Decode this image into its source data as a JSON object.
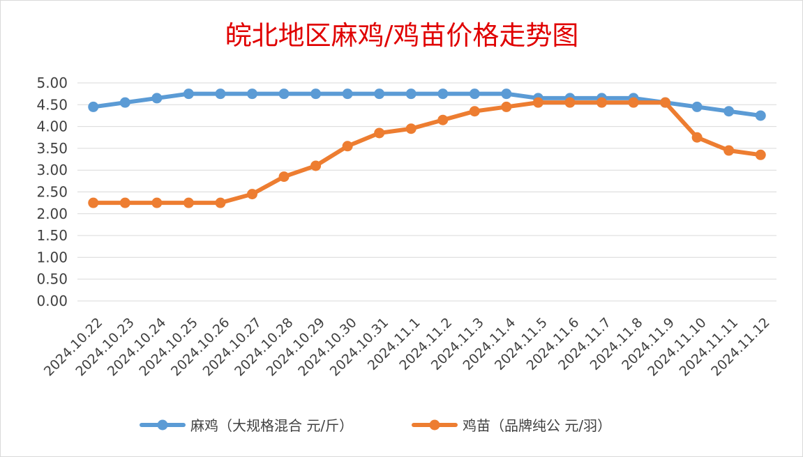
{
  "chart_data": {
    "type": "line",
    "title": "皖北地区麻鸡/鸡苗价格走势图",
    "xlabel": "",
    "ylabel": "",
    "ylim": [
      0,
      5
    ],
    "yticks": [
      "0.00",
      "0.50",
      "1.00",
      "1.50",
      "2.00",
      "2.50",
      "3.00",
      "3.50",
      "4.00",
      "4.50",
      "5.00"
    ],
    "grid": true,
    "legend_position": "bottom",
    "categories": [
      "2024.10.22",
      "2024.10.23",
      "2024.10.24",
      "2024.10.25",
      "2024.10.26",
      "2024.10.27",
      "2024.10.28",
      "2024.10.29",
      "2024.10.30",
      "2024.10.31",
      "2024.11.1",
      "2024.11.2",
      "2024.11.3",
      "2024.11.4",
      "2024.11.5",
      "2024.11.6",
      "2024.11.7",
      "2024.11.8",
      "2024.11.9",
      "2024.11.10",
      "2024.11.11",
      "2024.11.12"
    ],
    "series": [
      {
        "name": "麻鸡（大规格混合 元/斤）",
        "color": "#5b9bd5",
        "values": [
          4.45,
          4.55,
          4.65,
          4.75,
          4.75,
          4.75,
          4.75,
          4.75,
          4.75,
          4.75,
          4.75,
          4.75,
          4.75,
          4.75,
          4.65,
          4.65,
          4.65,
          4.65,
          4.55,
          4.45,
          4.35,
          4.25
        ]
      },
      {
        "name": "鸡苗（品牌纯公 元/羽）",
        "color": "#ed7d31",
        "values": [
          2.25,
          2.25,
          2.25,
          2.25,
          2.25,
          2.45,
          2.85,
          3.1,
          3.55,
          3.85,
          3.95,
          4.15,
          4.35,
          4.45,
          4.55,
          4.55,
          4.55,
          4.55,
          4.55,
          3.75,
          3.45,
          3.35
        ]
      }
    ]
  }
}
